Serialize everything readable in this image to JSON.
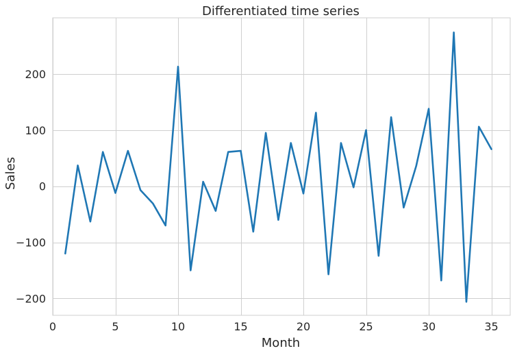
{
  "chart_data": {
    "type": "line",
    "title": "Differentiated time series",
    "xlabel": "Month",
    "ylabel": "Sales",
    "xlim": [
      0,
      36.5
    ],
    "ylim": [
      -230,
      300
    ],
    "xticks": [
      0,
      5,
      10,
      15,
      20,
      25,
      30,
      35
    ],
    "yticks": [
      -200,
      -100,
      0,
      100,
      200
    ],
    "ytick_labels": [
      "−200",
      "−100",
      "0",
      "100",
      "200"
    ],
    "grid": true,
    "line_color": "#1f77b4",
    "series": [
      {
        "x": [
          1,
          2,
          3,
          4,
          5,
          6,
          7,
          8,
          9,
          10,
          11,
          12,
          13,
          14,
          15,
          16,
          17,
          18,
          19,
          20,
          21,
          22,
          23,
          24,
          25,
          26,
          27,
          28,
          29,
          30,
          31,
          32,
          33,
          34,
          35
        ],
        "values": [
          -120,
          37,
          -63,
          61,
          -12,
          63,
          -7,
          -31,
          -70,
          213,
          -150,
          8,
          -44,
          61,
          63,
          -81,
          95,
          -60,
          77,
          -13,
          131,
          -157,
          77,
          -2,
          100,
          -124,
          123,
          -38,
          36,
          138,
          -168,
          274,
          -206,
          106,
          66
        ]
      }
    ]
  }
}
